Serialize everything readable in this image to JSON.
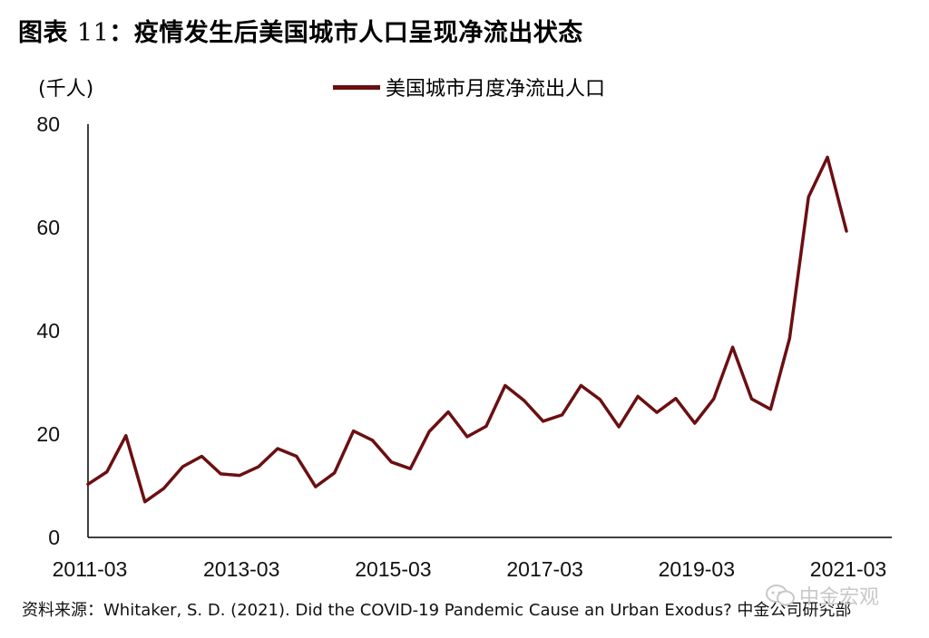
{
  "title_prefix": "图表",
  "title_number": "11",
  "title_text": "：疫情发生后美国城市人口呈现净流出状态",
  "unit_label": "(千人)",
  "source_text": "资料来源：Whitaker, S. D. (2021). Did the COVID-19 Pandemic Cause an Urban Exodus? 中金公司研究部",
  "watermark_text": "中金宏观",
  "colors": {
    "line": "#6b0f12",
    "axis": "#000000"
  },
  "chart_data": {
    "type": "line",
    "title": "疫情发生后美国城市人口呈现净流出状态",
    "xlabel": "",
    "ylabel": "(千人)",
    "ylim": [
      0,
      80
    ],
    "yticks": [
      0,
      20,
      40,
      60,
      80
    ],
    "xlim": [
      "2011-03",
      "2021-03"
    ],
    "xtick_labels": [
      "2011-03",
      "2013-03",
      "2015-03",
      "2017-03",
      "2019-03",
      "2021-03"
    ],
    "legend": "top",
    "grid": false,
    "series": [
      {
        "name": "美国城市月度净流出人口",
        "x": [
          "2011-03",
          "2011-06",
          "2011-09",
          "2011-12",
          "2012-03",
          "2012-06",
          "2012-09",
          "2012-12",
          "2013-03",
          "2013-06",
          "2013-09",
          "2013-12",
          "2014-03",
          "2014-06",
          "2014-09",
          "2014-12",
          "2015-03",
          "2015-06",
          "2015-09",
          "2015-12",
          "2016-03",
          "2016-06",
          "2016-09",
          "2016-12",
          "2017-03",
          "2017-06",
          "2017-09",
          "2017-12",
          "2018-03",
          "2018-06",
          "2018-09",
          "2018-12",
          "2019-03",
          "2019-06",
          "2019-09",
          "2019-12",
          "2020-03",
          "2020-06",
          "2020-09",
          "2020-12",
          "2021-03"
        ],
        "values": [
          10.3,
          12.7,
          19.7,
          6.9,
          9.5,
          13.7,
          15.7,
          12.3,
          12.0,
          13.7,
          17.2,
          15.7,
          9.8,
          12.5,
          20.6,
          18.8,
          14.6,
          13.3,
          20.5,
          24.3,
          19.5,
          21.5,
          29.4,
          26.5,
          22.5,
          23.7,
          29.4,
          26.7,
          21.4,
          27.3,
          24.2,
          26.9,
          22.1,
          26.8,
          36.8,
          26.8,
          24.8,
          38.5,
          65.9,
          73.6,
          59.3
        ]
      }
    ]
  }
}
